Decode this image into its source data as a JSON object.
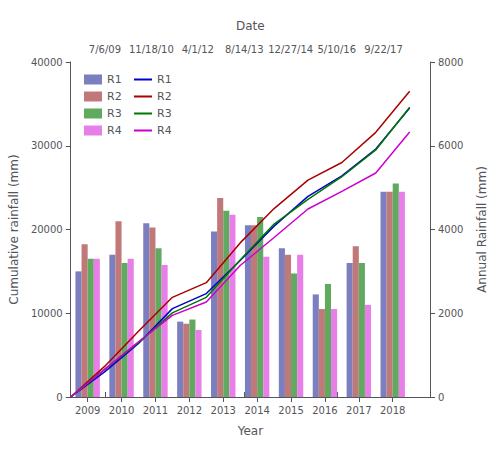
{
  "chart_data": {
    "type": "bar",
    "xlabel": "Year",
    "ylabel": "Cumulative rainfall (mm)",
    "y2label": "Annual Rainfall (mm)",
    "x2label": "Date",
    "xlim": [
      2008.5,
      2019.1
    ],
    "xticks": [
      2009,
      2010,
      2011,
      2012,
      2013,
      2014,
      2015,
      2016,
      2017,
      2018
    ],
    "x2ticks": [
      {
        "value": 2009.51,
        "label": "7/6/09"
      },
      {
        "value": 2010.88,
        "label": "11/18/10"
      },
      {
        "value": 2012.25,
        "label": "4/1/12"
      },
      {
        "value": 2013.62,
        "label": "8/14/13"
      },
      {
        "value": 2014.99,
        "label": "12/27/14"
      },
      {
        "value": 2016.35,
        "label": "5/10/16"
      },
      {
        "value": 2017.73,
        "label": "9/22/17"
      }
    ],
    "ylim": [
      0,
      40000
    ],
    "yticks": [
      0,
      10000,
      20000,
      30000,
      40000
    ],
    "y2lim": [
      0,
      8000
    ],
    "y2ticks": [
      0,
      2000,
      4000,
      6000,
      8000
    ],
    "grid": false,
    "legend": "upper left",
    "series": [
      {
        "name": "R1",
        "type": "bar",
        "axis": "y2",
        "color": "#7b7fbf",
        "x": [
          2009,
          2010,
          2011,
          2012,
          2013,
          2014,
          2015,
          2016,
          2017,
          2018
        ],
        "values": [
          3000,
          3400,
          4150,
          1800,
          3950,
          4100,
          3550,
          2450,
          3200,
          4900
        ]
      },
      {
        "name": "R2",
        "type": "bar",
        "axis": "y2",
        "color": "#c07878",
        "x": [
          2009,
          2010,
          2011,
          2012,
          2013,
          2014,
          2015,
          2016,
          2017,
          2018
        ],
        "values": [
          3650,
          4200,
          4050,
          1750,
          4750,
          4100,
          3400,
          2100,
          3600,
          4900
        ]
      },
      {
        "name": "R3",
        "type": "bar",
        "axis": "y2",
        "color": "#5faa5f",
        "x": [
          2009,
          2010,
          2011,
          2012,
          2013,
          2014,
          2015,
          2016,
          2017,
          2018
        ],
        "values": [
          3300,
          3200,
          3550,
          1850,
          4450,
          4300,
          2950,
          2700,
          3200,
          5100
        ]
      },
      {
        "name": "R4",
        "type": "bar",
        "axis": "y2",
        "color": "#e87fe8",
        "x": [
          2009,
          2010,
          2011,
          2012,
          2013,
          2014,
          2015,
          2016,
          2017,
          2018
        ],
        "values": [
          3300,
          3300,
          3150,
          1600,
          4350,
          3350,
          3400,
          2100,
          2200,
          4900
        ]
      },
      {
        "name": "R1",
        "type": "line",
        "color": "#0000cc",
        "x": [
          2008.5,
          2009.5,
          2010.5,
          2011.5,
          2012.5,
          2013.5,
          2014.5,
          2015.5,
          2016.5,
          2017.5,
          2018.5
        ],
        "values": [
          0,
          3000,
          6400,
          10550,
          12350,
          16300,
          20400,
          23950,
          26400,
          29600,
          34500
        ]
      },
      {
        "name": "R2",
        "type": "line",
        "color": "#aa0000",
        "x": [
          2008.5,
          2009.5,
          2010.5,
          2011.5,
          2012.5,
          2013.5,
          2014.5,
          2015.5,
          2016.5,
          2017.5,
          2018.5
        ],
        "values": [
          0,
          3650,
          7850,
          11900,
          13650,
          18400,
          22500,
          25900,
          28000,
          31600,
          36500
        ]
      },
      {
        "name": "R3",
        "type": "line",
        "color": "#007700",
        "x": [
          2008.5,
          2009.5,
          2010.5,
          2011.5,
          2012.5,
          2013.5,
          2014.5,
          2015.5,
          2016.5,
          2017.5,
          2018.5
        ],
        "values": [
          0,
          3300,
          6500,
          10050,
          11900,
          16350,
          20650,
          23600,
          26300,
          29500,
          34600
        ]
      },
      {
        "name": "R4",
        "type": "line",
        "color": "#cc00cc",
        "x": [
          2008.5,
          2009.5,
          2010.5,
          2011.5,
          2012.5,
          2013.5,
          2014.5,
          2015.5,
          2016.5,
          2017.5,
          2018.5
        ],
        "values": [
          0,
          3300,
          6600,
          9750,
          11350,
          15700,
          19050,
          22450,
          24550,
          26750,
          31650
        ]
      }
    ]
  }
}
